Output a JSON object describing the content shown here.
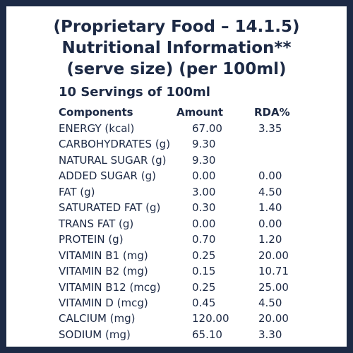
{
  "header": {
    "title_lines": [
      "(Proprietary Food – 14.1.5)",
      "Nutritional Information**",
      "(serve size) (per 100ml)"
    ],
    "subtitle": "10 Servings of 100ml"
  },
  "table": {
    "columns": [
      "Components",
      "Amount",
      "RDA%"
    ],
    "rows": [
      [
        "ENERGY (kcal)",
        "67.00",
        "3.35"
      ],
      [
        "CARBOHYDRATES (g)",
        "9.30",
        null
      ],
      [
        "NATURAL SUGAR (g)",
        "9.30",
        null
      ],
      [
        "ADDED SUGAR (g)",
        "0.00",
        "0.00"
      ],
      [
        "FAT (g)",
        "3.00",
        "4.50"
      ],
      [
        "SATURATED FAT (g)",
        "0.30",
        "1.40"
      ],
      [
        "TRANS FAT (g)",
        "0.00",
        "0.00"
      ],
      [
        "PROTEIN (g)",
        "0.70",
        "1.20"
      ],
      [
        "VITAMIN B1 (mg)",
        "0.25",
        "20.00"
      ],
      [
        "VITAMIN B2 (mg)",
        "0.15",
        "10.71"
      ],
      [
        "VITAMIN B12 (mcg)",
        "0.25",
        "25.00"
      ],
      [
        "VITAMIN D (mcg)",
        "0.45",
        "4.50"
      ],
      [
        "CALCIUM (mg)",
        "120.00",
        "20.00"
      ],
      [
        "SODIUM (mg)",
        "65.10",
        "3.30"
      ]
    ]
  }
}
